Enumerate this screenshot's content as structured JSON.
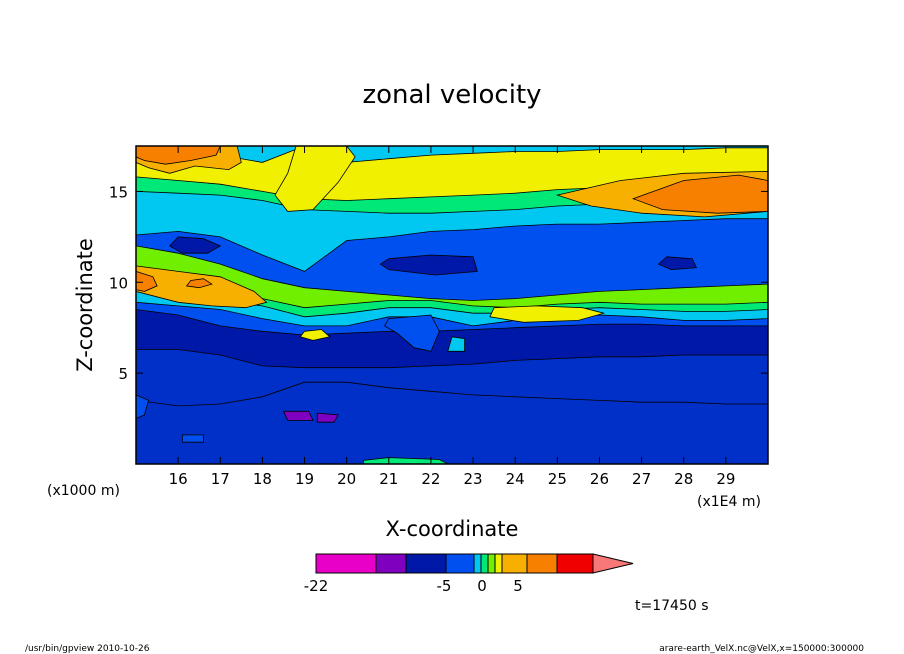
{
  "chart_data": {
    "type": "heatmap",
    "title": "zonal velocity",
    "xlabel": "X-coordinate",
    "ylabel": "Z-coordinate",
    "x_unit": "(x1E4 m)",
    "y_unit": "(x1000 m)",
    "xlim": [
      15.0,
      30.0
    ],
    "ylim": [
      0.0,
      17.5
    ],
    "x_ticks": [
      "16",
      "17",
      "18",
      "19",
      "20",
      "21",
      "22",
      "23",
      "24",
      "25",
      "26",
      "27",
      "28",
      "29"
    ],
    "x_tick_values": [
      16,
      17,
      18,
      19,
      20,
      21,
      22,
      23,
      24,
      25,
      26,
      27,
      28,
      29
    ],
    "y_ticks": [
      "5",
      "10",
      "15"
    ],
    "y_tick_values": [
      5,
      10,
      15
    ],
    "time_label": "t=17450 s",
    "colorbar": {
      "labels": [
        "-22",
        "-5",
        "0",
        "5"
      ],
      "label_values": [
        -22,
        -5,
        0,
        5
      ],
      "colors": [
        "#e800c8",
        "#8000c0",
        "#0018a8",
        "#0050f0",
        "#00c8f0",
        "#00e878",
        "#70f000",
        "#f0f000",
        "#f8b000",
        "#f88000",
        "#f00000",
        "#f87878"
      ]
    },
    "bands": [
      {
        "color": "#0030c8",
        "ymin": 0.0,
        "ymax": 3.5,
        "y0": [
          3.5,
          3.2,
          3.3,
          3.7,
          4.5,
          4.5,
          4.2,
          4.0,
          3.8,
          3.7,
          3.6,
          3.5,
          3.4,
          3.4,
          3.3,
          3.3
        ]
      },
      {
        "color": "#0018a8",
        "y0": [
          6.3,
          6.3,
          6.0,
          5.4,
          5.3,
          5.3,
          5.3,
          5.4,
          5.5,
          5.7,
          5.8,
          5.9,
          5.9,
          6.0,
          6.0,
          6.0
        ]
      },
      {
        "color": "#0050f0",
        "y0": [
          8.5,
          8.2,
          7.6,
          7.3,
          7.1,
          7.2,
          7.3,
          7.3,
          7.4,
          7.5,
          7.6,
          7.7,
          7.7,
          7.6,
          7.6,
          7.6
        ]
      },
      {
        "color": "#00c8f0",
        "y0": [
          8.9,
          8.7,
          8.5,
          8.0,
          7.6,
          7.6,
          8.1,
          8.1,
          7.6,
          7.9,
          8.1,
          8.2,
          8.1,
          7.9,
          7.9,
          8.0
        ]
      },
      {
        "color": "#00e878",
        "y0": [
          9.6,
          9.3,
          9.0,
          8.7,
          8.1,
          8.3,
          8.6,
          8.6,
          8.3,
          8.3,
          8.5,
          8.6,
          8.5,
          8.4,
          8.4,
          8.5
        ]
      },
      {
        "color": "#70f000",
        "y0": [
          10.2,
          9.9,
          9.5,
          9.1,
          8.6,
          8.8,
          9.0,
          9.0,
          8.7,
          8.6,
          8.8,
          8.9,
          8.8,
          8.8,
          8.8,
          8.9
        ]
      },
      {
        "color": "#0050f0",
        "y0": [
          12.0,
          11.6,
          11.0,
          10.2,
          9.7,
          9.5,
          9.3,
          9.1,
          9.0,
          9.1,
          9.3,
          9.5,
          9.6,
          9.7,
          9.8,
          9.9
        ]
      },
      {
        "color": "#00c8f0",
        "y0": [
          12.6,
          12.8,
          12.5,
          11.5,
          10.6,
          12.3,
          12.5,
          12.8,
          12.9,
          13.1,
          13.2,
          13.2,
          13.3,
          13.4,
          13.5,
          13.5
        ]
      },
      {
        "color": "#00e878",
        "y0": [
          15.0,
          14.9,
          14.8,
          14.5,
          14.0,
          13.9,
          13.8,
          13.8,
          13.9,
          14.0,
          14.2,
          14.3,
          14.5,
          14.6,
          14.7,
          14.8
        ]
      },
      {
        "color": "#f0f000",
        "y0": [
          15.8,
          15.6,
          15.4,
          15.0,
          14.6,
          14.5,
          14.6,
          14.7,
          14.8,
          14.9,
          15.1,
          15.2,
          15.3,
          15.4,
          15.5,
          15.5
        ]
      },
      {
        "color": "#00c8f0",
        "y0": [
          17.5,
          17.5,
          17.0,
          16.6,
          17.5,
          16.6,
          16.8,
          17.0,
          17.1,
          17.2,
          17.2,
          17.3,
          17.3,
          17.3,
          17.4,
          17.4
        ]
      }
    ],
    "patches": [
      {
        "color": "#f8b000",
        "points": [
          [
            15.0,
            17.5
          ],
          [
            17.4,
            17.5
          ],
          [
            17.5,
            16.6
          ],
          [
            17.2,
            16.2
          ],
          [
            16.4,
            16.4
          ],
          [
            15.8,
            16.0
          ],
          [
            15.3,
            16.3
          ],
          [
            15.0,
            16.6
          ]
        ]
      },
      {
        "color": "#f88000",
        "points": [
          [
            15.0,
            17.5
          ],
          [
            17.0,
            17.5
          ],
          [
            16.9,
            17.0
          ],
          [
            16.3,
            16.7
          ],
          [
            15.7,
            16.5
          ],
          [
            15.2,
            16.7
          ],
          [
            15.0,
            16.9
          ]
        ]
      },
      {
        "color": "#f8b000",
        "points": [
          [
            15.0,
            10.9
          ],
          [
            16.0,
            10.6
          ],
          [
            17.0,
            10.3
          ],
          [
            17.8,
            9.5
          ],
          [
            18.1,
            8.9
          ],
          [
            17.6,
            8.6
          ],
          [
            16.8,
            8.7
          ],
          [
            16.0,
            8.9
          ],
          [
            15.0,
            9.5
          ]
        ]
      },
      {
        "color": "#f88000",
        "points": [
          [
            15.0,
            10.6
          ],
          [
            15.4,
            10.3
          ],
          [
            15.5,
            9.8
          ],
          [
            15.2,
            9.5
          ],
          [
            15.0,
            9.6
          ]
        ]
      },
      {
        "color": "#f88000",
        "points": [
          [
            16.3,
            10.1
          ],
          [
            16.6,
            10.2
          ],
          [
            16.8,
            9.9
          ],
          [
            16.5,
            9.7
          ],
          [
            16.2,
            9.8
          ]
        ]
      },
      {
        "color": "#f0f000",
        "points": [
          [
            23.5,
            8.6
          ],
          [
            24.5,
            8.7
          ],
          [
            25.6,
            8.6
          ],
          [
            26.1,
            8.3
          ],
          [
            25.5,
            7.9
          ],
          [
            24.2,
            7.8
          ],
          [
            23.4,
            8.1
          ]
        ]
      },
      {
        "color": "#f0f000",
        "points": [
          [
            19.0,
            7.3
          ],
          [
            19.4,
            7.4
          ],
          [
            19.6,
            7.0
          ],
          [
            19.2,
            6.8
          ],
          [
            18.9,
            7.0
          ]
        ]
      },
      {
        "color": "#f8b000",
        "points": [
          [
            25.0,
            14.8
          ],
          [
            26.5,
            15.6
          ],
          [
            28.0,
            16.0
          ],
          [
            30.0,
            16.1
          ],
          [
            30.0,
            13.9
          ],
          [
            28.5,
            13.6
          ],
          [
            27.0,
            13.8
          ],
          [
            25.8,
            14.2
          ]
        ]
      },
      {
        "color": "#f88000",
        "points": [
          [
            26.8,
            14.6
          ],
          [
            28.0,
            15.6
          ],
          [
            29.3,
            15.9
          ],
          [
            30.0,
            15.6
          ],
          [
            30.0,
            13.9
          ],
          [
            28.8,
            13.8
          ],
          [
            27.5,
            14.0
          ]
        ]
      },
      {
        "color": "#f0f000",
        "points": [
          [
            18.8,
            17.5
          ],
          [
            20.0,
            17.5
          ],
          [
            20.2,
            16.9
          ],
          [
            19.8,
            15.5
          ],
          [
            19.2,
            14.0
          ],
          [
            18.6,
            13.9
          ],
          [
            18.3,
            14.8
          ],
          [
            18.6,
            16.0
          ]
        ]
      },
      {
        "color": "#0018a8",
        "points": [
          [
            16.0,
            12.5
          ],
          [
            16.6,
            12.4
          ],
          [
            17.0,
            12.0
          ],
          [
            16.7,
            11.6
          ],
          [
            16.1,
            11.6
          ],
          [
            15.8,
            12.0
          ]
        ]
      },
      {
        "color": "#0018a8",
        "points": [
          [
            21.0,
            11.3
          ],
          [
            22.0,
            11.5
          ],
          [
            23.0,
            11.4
          ],
          [
            23.1,
            10.6
          ],
          [
            22.1,
            10.4
          ],
          [
            21.0,
            10.7
          ],
          [
            20.8,
            11.0
          ]
        ]
      },
      {
        "color": "#0018a8",
        "points": [
          [
            27.6,
            11.4
          ],
          [
            28.2,
            11.3
          ],
          [
            28.3,
            10.8
          ],
          [
            27.7,
            10.7
          ],
          [
            27.4,
            11.0
          ]
        ]
      },
      {
        "color": "#0050f0",
        "points": [
          [
            21.0,
            8.0
          ],
          [
            22.0,
            8.2
          ],
          [
            22.2,
            7.3
          ],
          [
            22.0,
            6.2
          ],
          [
            21.6,
            6.4
          ],
          [
            21.2,
            7.2
          ],
          [
            20.9,
            7.6
          ]
        ]
      },
      {
        "color": "#00c8f0",
        "points": [
          [
            22.5,
            7.0
          ],
          [
            22.8,
            6.9
          ],
          [
            22.8,
            6.2
          ],
          [
            22.4,
            6.2
          ]
        ]
      },
      {
        "color": "#8000c0",
        "points": [
          [
            18.5,
            2.9
          ],
          [
            19.1,
            2.9
          ],
          [
            19.2,
            2.4
          ],
          [
            18.6,
            2.4
          ]
        ]
      },
      {
        "color": "#8000c0",
        "points": [
          [
            19.3,
            2.8
          ],
          [
            19.8,
            2.7
          ],
          [
            19.7,
            2.3
          ],
          [
            19.3,
            2.3
          ]
        ]
      },
      {
        "color": "#0050f0",
        "points": [
          [
            15.0,
            3.8
          ],
          [
            15.3,
            3.5
          ],
          [
            15.2,
            2.7
          ],
          [
            15.0,
            2.5
          ]
        ]
      },
      {
        "color": "#0050f0",
        "points": [
          [
            16.1,
            1.6
          ],
          [
            16.6,
            1.6
          ],
          [
            16.6,
            1.2
          ],
          [
            16.1,
            1.2
          ]
        ]
      },
      {
        "color": "#00e878",
        "points": [
          [
            20.4,
            0.0
          ],
          [
            22.4,
            0.0
          ],
          [
            22.2,
            0.25
          ],
          [
            21.0,
            0.35
          ],
          [
            20.4,
            0.2
          ]
        ]
      }
    ]
  },
  "footer": {
    "left": "/usr/bin/gpview   2010-10-26",
    "right": "arare-earth_VelX.nc@VelX,x=150000:300000"
  }
}
